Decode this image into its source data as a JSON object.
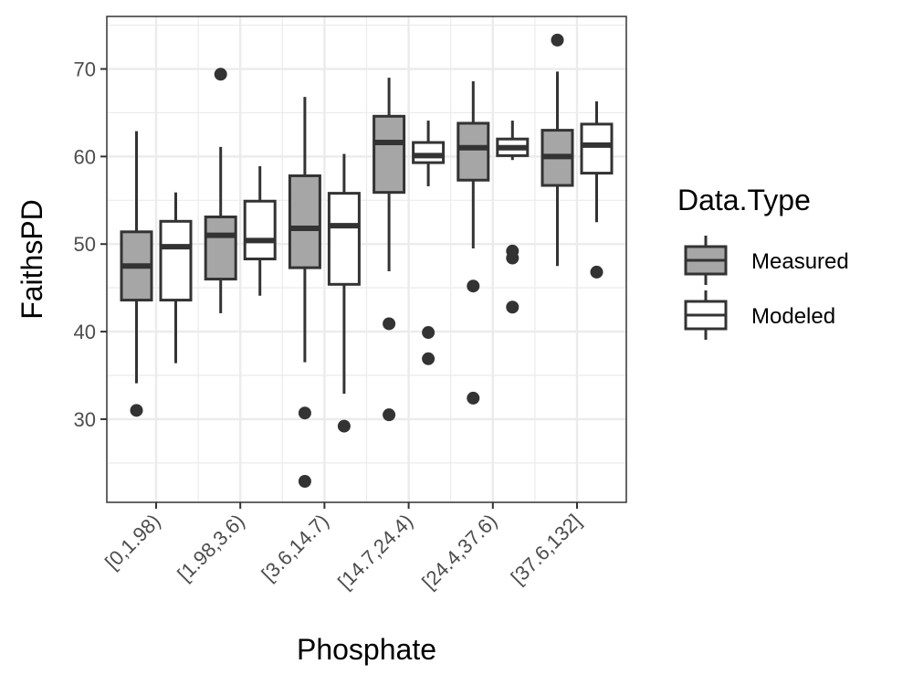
{
  "chart_data": {
    "type": "box",
    "xlabel": "Phosphate",
    "ylabel": "FaithsPD",
    "categories": [
      "[0,1.98)",
      "[1.98,3.6)",
      "[3.6,14.7)",
      "[14.7,24.4)",
      "[24.4,37.6)",
      "[37.6,132]"
    ],
    "ylim": [
      20.5,
      76
    ],
    "yticks": [
      30,
      40,
      50,
      60,
      70
    ],
    "grid": true,
    "legend": {
      "title": "Data.Type",
      "position": "right",
      "entries": [
        {
          "label": "Measured",
          "fill": "#a6a6a6"
        },
        {
          "label": "Modeled",
          "fill": "#ffffff"
        }
      ]
    },
    "series": [
      {
        "name": "Measured",
        "fill": "#a6a6a6",
        "boxes": [
          {
            "whisker_low": 34.1,
            "q1": 43.6,
            "median": 47.5,
            "q3": 51.4,
            "whisker_high": 62.9,
            "outliers": [
              31.0
            ]
          },
          {
            "whisker_low": 42.1,
            "q1": 46.0,
            "median": 51.0,
            "q3": 53.1,
            "whisker_high": 61.1,
            "outliers": [
              69.4
            ]
          },
          {
            "whisker_low": 36.5,
            "q1": 47.3,
            "median": 51.8,
            "q3": 57.8,
            "whisker_high": 66.8,
            "outliers": [
              30.7,
              22.9
            ]
          },
          {
            "whisker_low": 46.9,
            "q1": 55.9,
            "median": 61.6,
            "q3": 64.6,
            "whisker_high": 69.0,
            "outliers": [
              40.9,
              30.5
            ]
          },
          {
            "whisker_low": 49.5,
            "q1": 57.3,
            "median": 61.0,
            "q3": 63.8,
            "whisker_high": 68.6,
            "outliers": [
              45.2,
              32.4
            ]
          },
          {
            "whisker_low": 47.5,
            "q1": 56.7,
            "median": 60.0,
            "q3": 63.0,
            "whisker_high": 69.7,
            "outliers": [
              73.3
            ]
          }
        ]
      },
      {
        "name": "Modeled",
        "fill": "#ffffff",
        "boxes": [
          {
            "whisker_low": 36.4,
            "q1": 43.6,
            "median": 49.7,
            "q3": 52.6,
            "whisker_high": 55.9,
            "outliers": []
          },
          {
            "whisker_low": 44.1,
            "q1": 48.3,
            "median": 50.4,
            "q3": 54.9,
            "whisker_high": 58.9,
            "outliers": []
          },
          {
            "whisker_low": 32.9,
            "q1": 45.4,
            "median": 52.1,
            "q3": 55.8,
            "whisker_high": 60.3,
            "outliers": [
              29.2
            ]
          },
          {
            "whisker_low": 56.6,
            "q1": 59.3,
            "median": 60.1,
            "q3": 61.6,
            "whisker_high": 64.1,
            "outliers": [
              39.9,
              36.9
            ]
          },
          {
            "whisker_low": 59.6,
            "q1": 60.1,
            "median": 61.0,
            "q3": 62.0,
            "whisker_high": 64.1,
            "outliers": [
              49.2,
              48.4,
              42.8
            ]
          },
          {
            "whisker_low": 52.5,
            "q1": 58.1,
            "median": 61.3,
            "q3": 63.7,
            "whisker_high": 66.3,
            "outliers": [
              46.8
            ]
          }
        ]
      }
    ]
  }
}
